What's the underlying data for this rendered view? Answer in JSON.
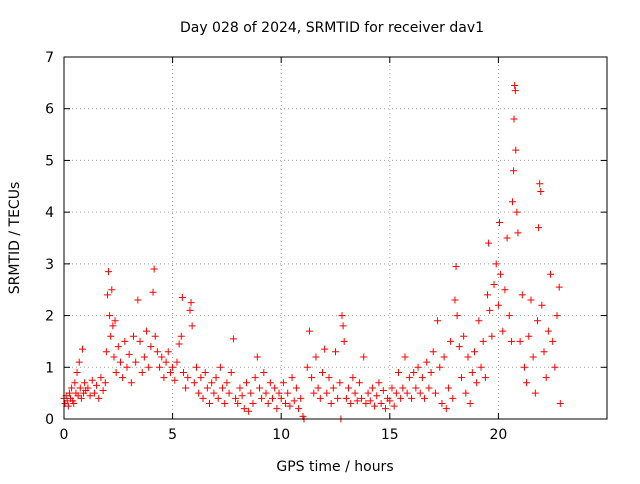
{
  "chart_data": {
    "type": "scatter",
    "title": "Day 028 of 2024, SRMTID for receiver dav1",
    "xlabel": "GPS time / hours",
    "ylabel": "SRMTID / TECUs",
    "xlim": [
      0,
      25
    ],
    "ylim": [
      0,
      7
    ],
    "xticks": [
      0,
      5,
      10,
      15,
      20
    ],
    "yticks": [
      0,
      1,
      2,
      3,
      4,
      5,
      6,
      7
    ],
    "grid": true,
    "marker": "plus",
    "color": "#ff0000",
    "series": [
      {
        "name": "SRMTID",
        "points": [
          [
            0.0,
            0.4
          ],
          [
            0.05,
            0.3
          ],
          [
            0.1,
            0.45
          ],
          [
            0.15,
            0.35
          ],
          [
            0.2,
            0.25
          ],
          [
            0.25,
            0.5
          ],
          [
            0.3,
            0.4
          ],
          [
            0.35,
            0.6
          ],
          [
            0.4,
            0.35
          ],
          [
            0.45,
            0.3
          ],
          [
            0.5,
            0.7
          ],
          [
            0.55,
            0.5
          ],
          [
            0.6,
            0.9
          ],
          [
            0.65,
            0.45
          ],
          [
            0.7,
            1.1
          ],
          [
            0.75,
            0.6
          ],
          [
            0.8,
            0.4
          ],
          [
            0.85,
            1.35
          ],
          [
            0.9,
            0.5
          ],
          [
            0.95,
            0.7
          ],
          [
            1.0,
            0.55
          ],
          [
            1.1,
            0.6
          ],
          [
            1.2,
            0.45
          ],
          [
            1.3,
            0.75
          ],
          [
            1.4,
            0.5
          ],
          [
            1.5,
            0.65
          ],
          [
            1.6,
            0.4
          ],
          [
            1.7,
            0.8
          ],
          [
            1.8,
            0.55
          ],
          [
            1.9,
            0.7
          ],
          [
            1.95,
            1.3
          ],
          [
            2.0,
            2.4
          ],
          [
            2.05,
            2.85
          ],
          [
            2.1,
            2.0
          ],
          [
            2.15,
            1.6
          ],
          [
            2.2,
            2.5
          ],
          [
            2.25,
            1.8
          ],
          [
            2.3,
            1.2
          ],
          [
            2.35,
            1.9
          ],
          [
            2.4,
            0.9
          ],
          [
            2.5,
            1.4
          ],
          [
            2.6,
            1.1
          ],
          [
            2.7,
            0.8
          ],
          [
            2.8,
            1.5
          ],
          [
            2.9,
            1.0
          ],
          [
            3.0,
            1.25
          ],
          [
            3.1,
            0.7
          ],
          [
            3.2,
            1.6
          ],
          [
            3.3,
            1.1
          ],
          [
            3.4,
            2.3
          ],
          [
            3.5,
            1.5
          ],
          [
            3.6,
            0.9
          ],
          [
            3.7,
            1.2
          ],
          [
            3.8,
            1.7
          ],
          [
            3.9,
            1.0
          ],
          [
            4.0,
            1.4
          ],
          [
            4.1,
            2.45
          ],
          [
            4.15,
            2.9
          ],
          [
            4.2,
            1.6
          ],
          [
            4.3,
            1.3
          ],
          [
            4.4,
            1.0
          ],
          [
            4.5,
            1.2
          ],
          [
            4.6,
            0.8
          ],
          [
            4.7,
            1.1
          ],
          [
            4.8,
            1.3
          ],
          [
            4.9,
            0.9
          ],
          [
            5.0,
            1.0
          ],
          [
            5.1,
            0.75
          ],
          [
            5.2,
            1.1
          ],
          [
            5.3,
            1.45
          ],
          [
            5.4,
            1.6
          ],
          [
            5.45,
            2.35
          ],
          [
            5.5,
            0.9
          ],
          [
            5.6,
            0.6
          ],
          [
            5.7,
            0.8
          ],
          [
            5.8,
            2.1
          ],
          [
            5.85,
            2.25
          ],
          [
            5.9,
            1.8
          ],
          [
            6.0,
            0.7
          ],
          [
            6.1,
            1.0
          ],
          [
            6.2,
            0.5
          ],
          [
            6.3,
            0.8
          ],
          [
            6.4,
            0.4
          ],
          [
            6.5,
            0.9
          ],
          [
            6.6,
            0.6
          ],
          [
            6.7,
            0.3
          ],
          [
            6.8,
            0.7
          ],
          [
            6.9,
            0.5
          ],
          [
            7.0,
            0.8
          ],
          [
            7.1,
            0.4
          ],
          [
            7.2,
            1.0
          ],
          [
            7.3,
            0.6
          ],
          [
            7.4,
            0.3
          ],
          [
            7.5,
            0.7
          ],
          [
            7.6,
            0.5
          ],
          [
            7.7,
            0.9
          ],
          [
            7.8,
            1.55
          ],
          [
            7.9,
            0.4
          ],
          [
            8.0,
            0.3
          ],
          [
            8.1,
            0.6
          ],
          [
            8.2,
            0.45
          ],
          [
            8.3,
            0.2
          ],
          [
            8.4,
            0.7
          ],
          [
            8.5,
            0.15
          ],
          [
            8.6,
            0.5
          ],
          [
            8.7,
            0.3
          ],
          [
            8.8,
            0.8
          ],
          [
            8.9,
            1.2
          ],
          [
            9.0,
            0.6
          ],
          [
            9.1,
            0.4
          ],
          [
            9.2,
            0.9
          ],
          [
            9.3,
            0.5
          ],
          [
            9.4,
            0.3
          ],
          [
            9.5,
            0.7
          ],
          [
            9.6,
            0.4
          ],
          [
            9.7,
            0.6
          ],
          [
            9.8,
            0.2
          ],
          [
            9.9,
            0.5
          ],
          [
            10.0,
            0.4
          ],
          [
            10.1,
            0.7
          ],
          [
            10.2,
            0.3
          ],
          [
            10.3,
            0.5
          ],
          [
            10.4,
            0.25
          ],
          [
            10.5,
            0.8
          ],
          [
            10.6,
            0.35
          ],
          [
            10.7,
            0.6
          ],
          [
            10.8,
            0.2
          ],
          [
            10.9,
            0.4
          ],
          [
            11.0,
            0.05
          ],
          [
            11.05,
            0.0
          ],
          [
            11.2,
            1.0
          ],
          [
            11.3,
            1.7
          ],
          [
            11.4,
            0.8
          ],
          [
            11.5,
            0.5
          ],
          [
            11.6,
            1.2
          ],
          [
            11.7,
            0.6
          ],
          [
            11.8,
            0.4
          ],
          [
            11.9,
            0.9
          ],
          [
            12.0,
            1.35
          ],
          [
            12.1,
            0.5
          ],
          [
            12.2,
            0.8
          ],
          [
            12.3,
            0.3
          ],
          [
            12.4,
            0.6
          ],
          [
            12.5,
            1.3
          ],
          [
            12.6,
            0.4
          ],
          [
            12.7,
            0.7
          ],
          [
            12.75,
            0.0
          ],
          [
            12.8,
            2.0
          ],
          [
            12.85,
            1.8
          ],
          [
            12.9,
            1.5
          ],
          [
            13.0,
            0.4
          ],
          [
            13.1,
            0.6
          ],
          [
            13.2,
            0.3
          ],
          [
            13.3,
            0.8
          ],
          [
            13.4,
            0.5
          ],
          [
            13.5,
            0.35
          ],
          [
            13.6,
            0.7
          ],
          [
            13.7,
            0.4
          ],
          [
            13.8,
            1.2
          ],
          [
            13.9,
            0.3
          ],
          [
            14.0,
            0.5
          ],
          [
            14.1,
            0.35
          ],
          [
            14.2,
            0.6
          ],
          [
            14.3,
            0.25
          ],
          [
            14.4,
            0.45
          ],
          [
            14.5,
            0.7
          ],
          [
            14.6,
            0.3
          ],
          [
            14.7,
            0.55
          ],
          [
            14.8,
            0.2
          ],
          [
            14.9,
            0.4
          ],
          [
            15.0,
            0.35
          ],
          [
            15.1,
            0.6
          ],
          [
            15.2,
            0.25
          ],
          [
            15.3,
            0.5
          ],
          [
            15.4,
            0.9
          ],
          [
            15.5,
            0.4
          ],
          [
            15.6,
            0.6
          ],
          [
            15.7,
            1.2
          ],
          [
            15.8,
            0.5
          ],
          [
            15.9,
            0.8
          ],
          [
            16.0,
            0.4
          ],
          [
            16.1,
            0.9
          ],
          [
            16.2,
            0.6
          ],
          [
            16.3,
            1.0
          ],
          [
            16.4,
            0.5
          ],
          [
            16.5,
            0.8
          ],
          [
            16.6,
            0.4
          ],
          [
            16.7,
            1.1
          ],
          [
            16.8,
            0.6
          ],
          [
            16.9,
            0.9
          ],
          [
            17.0,
            1.3
          ],
          [
            17.1,
            0.5
          ],
          [
            17.2,
            1.9
          ],
          [
            17.3,
            1.0
          ],
          [
            17.4,
            0.3
          ],
          [
            17.5,
            1.2
          ],
          [
            17.6,
            0.2
          ],
          [
            17.7,
            0.6
          ],
          [
            17.8,
            1.5
          ],
          [
            17.9,
            0.4
          ],
          [
            18.0,
            2.3
          ],
          [
            18.05,
            2.95
          ],
          [
            18.1,
            2.0
          ],
          [
            18.2,
            1.4
          ],
          [
            18.3,
            0.8
          ],
          [
            18.4,
            1.6
          ],
          [
            18.5,
            0.5
          ],
          [
            18.6,
            1.2
          ],
          [
            18.7,
            0.3
          ],
          [
            18.8,
            0.9
          ],
          [
            18.9,
            1.3
          ],
          [
            19.0,
            0.7
          ],
          [
            19.1,
            1.9
          ],
          [
            19.2,
            1.0
          ],
          [
            19.3,
            1.5
          ],
          [
            19.4,
            0.8
          ],
          [
            19.5,
            2.4
          ],
          [
            19.55,
            3.4
          ],
          [
            19.6,
            2.1
          ],
          [
            19.7,
            1.6
          ],
          [
            19.8,
            2.6
          ],
          [
            19.9,
            3.0
          ],
          [
            20.0,
            2.2
          ],
          [
            20.05,
            3.8
          ],
          [
            20.1,
            2.8
          ],
          [
            20.2,
            1.7
          ],
          [
            20.3,
            2.5
          ],
          [
            20.4,
            3.5
          ],
          [
            20.5,
            2.0
          ],
          [
            20.6,
            1.5
          ],
          [
            20.65,
            4.2
          ],
          [
            20.7,
            4.8
          ],
          [
            20.72,
            5.8
          ],
          [
            20.75,
            6.45
          ],
          [
            20.78,
            6.35
          ],
          [
            20.8,
            5.2
          ],
          [
            20.85,
            4.0
          ],
          [
            20.9,
            3.6
          ],
          [
            21.0,
            1.5
          ],
          [
            21.1,
            2.4
          ],
          [
            21.2,
            1.0
          ],
          [
            21.3,
            0.7
          ],
          [
            21.4,
            1.6
          ],
          [
            21.5,
            2.3
          ],
          [
            21.6,
            1.2
          ],
          [
            21.7,
            0.5
          ],
          [
            21.8,
            1.9
          ],
          [
            21.85,
            3.7
          ],
          [
            21.9,
            4.55
          ],
          [
            21.95,
            4.4
          ],
          [
            22.0,
            2.2
          ],
          [
            22.1,
            1.3
          ],
          [
            22.2,
            0.8
          ],
          [
            22.3,
            1.7
          ],
          [
            22.4,
            2.8
          ],
          [
            22.5,
            1.5
          ],
          [
            22.6,
            1.0
          ],
          [
            22.7,
            2.0
          ],
          [
            22.8,
            2.55
          ],
          [
            22.85,
            0.3
          ]
        ]
      }
    ]
  }
}
